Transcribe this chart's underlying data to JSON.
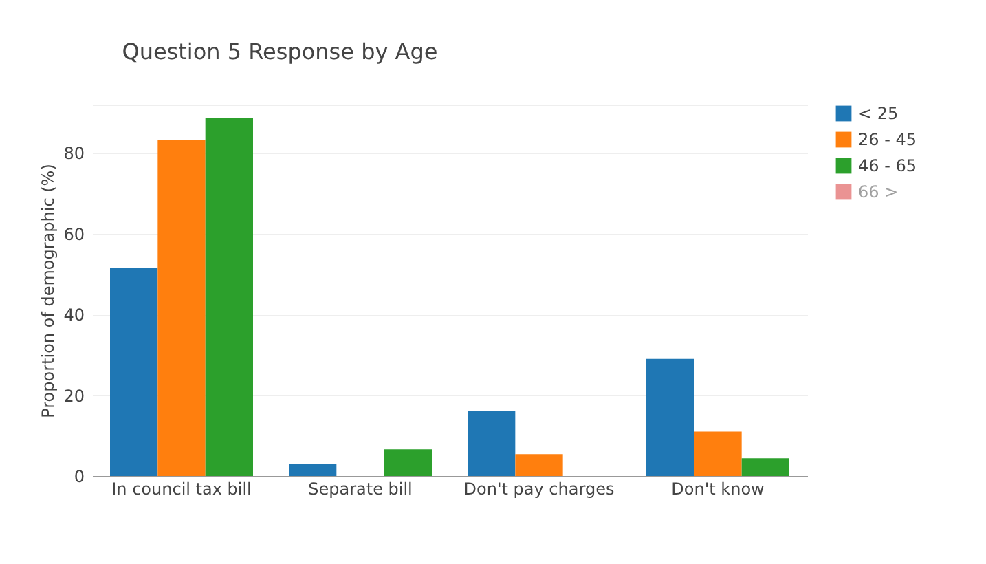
{
  "chart_data": {
    "type": "bar",
    "title": "Question 5 Response by Age",
    "ylabel": "Proportion of demographic (%)",
    "categories": [
      "In council tax bill",
      "Separate bill",
      "Don't pay charges",
      "Don't know"
    ],
    "series": [
      {
        "name": "< 25",
        "color": "#1f77b4",
        "values": [
          51.5,
          3.0,
          16.0,
          29.0
        ]
      },
      {
        "name": "26 - 45",
        "color": "#ff7f0e",
        "values": [
          83.3,
          null,
          5.4,
          11.0
        ]
      },
      {
        "name": "46 - 65",
        "color": "#2ca02c",
        "values": [
          88.7,
          6.6,
          null,
          4.4
        ]
      },
      {
        "name": "66 >",
        "color": "#d62728",
        "values": [
          null,
          null,
          null,
          null
        ]
      }
    ],
    "ylim": [
      0,
      92
    ],
    "yticks": [
      0,
      20,
      40,
      60,
      80,
      {
        "value": 92,
        "label": null
      }
    ],
    "grid": "y",
    "legend": "top right"
  }
}
